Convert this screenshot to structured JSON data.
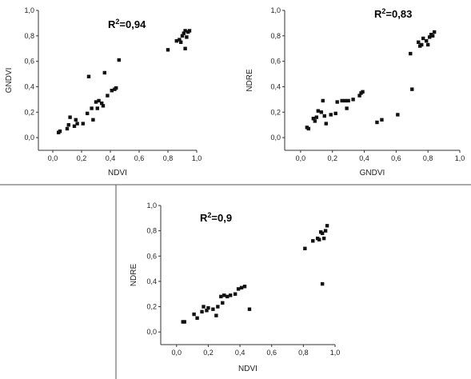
{
  "chart_data": [
    {
      "type": "scatter",
      "xlabel": "NDVI",
      "ylabel": "GNDVI",
      "annotation": {
        "base": "R",
        "sup": "2",
        "value": "=0,94"
      },
      "xlim": [
        -0.1,
        1.0
      ],
      "ylim": [
        -0.1,
        1.0
      ],
      "xticks": [
        "0,0",
        "0,2",
        "0,4",
        "0,6",
        "0,8",
        "1,0"
      ],
      "yticks": [
        "0,0",
        "0,2",
        "0,4",
        "0,6",
        "0,8",
        "1,0"
      ],
      "points": [
        [
          0.04,
          0.04
        ],
        [
          0.05,
          0.05
        ],
        [
          0.1,
          0.07
        ],
        [
          0.11,
          0.1
        ],
        [
          0.12,
          0.16
        ],
        [
          0.15,
          0.09
        ],
        [
          0.16,
          0.14
        ],
        [
          0.17,
          0.11
        ],
        [
          0.21,
          0.11
        ],
        [
          0.24,
          0.19
        ],
        [
          0.25,
          0.48
        ],
        [
          0.27,
          0.23
        ],
        [
          0.28,
          0.14
        ],
        [
          0.3,
          0.28
        ],
        [
          0.31,
          0.23
        ],
        [
          0.32,
          0.29
        ],
        [
          0.34,
          0.27
        ],
        [
          0.35,
          0.25
        ],
        [
          0.36,
          0.51
        ],
        [
          0.38,
          0.33
        ],
        [
          0.41,
          0.37
        ],
        [
          0.43,
          0.38
        ],
        [
          0.44,
          0.39
        ],
        [
          0.46,
          0.61
        ],
        [
          0.8,
          0.69
        ],
        [
          0.86,
          0.76
        ],
        [
          0.88,
          0.77
        ],
        [
          0.89,
          0.75
        ],
        [
          0.9,
          0.8
        ],
        [
          0.91,
          0.82
        ],
        [
          0.92,
          0.7
        ],
        [
          0.92,
          0.84
        ],
        [
          0.93,
          0.79
        ],
        [
          0.94,
          0.83
        ],
        [
          0.95,
          0.84
        ]
      ]
    },
    {
      "type": "scatter",
      "xlabel": "GNDVI",
      "ylabel": "NDRE",
      "annotation": {
        "base": "R",
        "sup": "2",
        "value": "=0,83"
      },
      "xlim": [
        -0.1,
        1.0
      ],
      "ylim": [
        -0.1,
        1.0
      ],
      "xticks": [
        "0,0",
        "0,2",
        "0,4",
        "0,6",
        "0,8",
        "1,0"
      ],
      "yticks": [
        "0,0",
        "0,2",
        "0,4",
        "0,6",
        "0,8",
        "1,0"
      ],
      "points": [
        [
          0.04,
          0.08
        ],
        [
          0.05,
          0.07
        ],
        [
          0.08,
          0.15
        ],
        [
          0.09,
          0.13
        ],
        [
          0.1,
          0.16
        ],
        [
          0.11,
          0.21
        ],
        [
          0.13,
          0.2
        ],
        [
          0.14,
          0.29
        ],
        [
          0.15,
          0.17
        ],
        [
          0.16,
          0.11
        ],
        [
          0.19,
          0.18
        ],
        [
          0.22,
          0.19
        ],
        [
          0.23,
          0.28
        ],
        [
          0.26,
          0.29
        ],
        [
          0.28,
          0.29
        ],
        [
          0.29,
          0.23
        ],
        [
          0.3,
          0.29
        ],
        [
          0.33,
          0.3
        ],
        [
          0.37,
          0.33
        ],
        [
          0.38,
          0.35
        ],
        [
          0.39,
          0.36
        ],
        [
          0.48,
          0.12
        ],
        [
          0.51,
          0.14
        ],
        [
          0.61,
          0.18
        ],
        [
          0.69,
          0.66
        ],
        [
          0.7,
          0.38
        ],
        [
          0.74,
          0.75
        ],
        [
          0.75,
          0.72
        ],
        [
          0.76,
          0.73
        ],
        [
          0.77,
          0.78
        ],
        [
          0.79,
          0.76
        ],
        [
          0.8,
          0.73
        ],
        [
          0.81,
          0.79
        ],
        [
          0.82,
          0.81
        ],
        [
          0.83,
          0.8
        ],
        [
          0.84,
          0.83
        ]
      ]
    },
    {
      "type": "scatter",
      "xlabel": "NDVI",
      "ylabel": "NDRE",
      "annotation": {
        "base": "R",
        "sup": "2",
        "value": "=0,9"
      },
      "xlim": [
        -0.1,
        1.0
      ],
      "ylim": [
        -0.1,
        1.0
      ],
      "xticks": [
        "0,0",
        "0,2",
        "0,4",
        "0,6",
        "0,8",
        "1,0"
      ],
      "yticks": [
        "0,0",
        "0,2",
        "0,4",
        "0,6",
        "0,8",
        "1,0"
      ],
      "points": [
        [
          0.04,
          0.08
        ],
        [
          0.05,
          0.08
        ],
        [
          0.11,
          0.14
        ],
        [
          0.13,
          0.11
        ],
        [
          0.16,
          0.16
        ],
        [
          0.17,
          0.2
        ],
        [
          0.19,
          0.17
        ],
        [
          0.2,
          0.19
        ],
        [
          0.23,
          0.18
        ],
        [
          0.25,
          0.13
        ],
        [
          0.26,
          0.2
        ],
        [
          0.28,
          0.28
        ],
        [
          0.29,
          0.23
        ],
        [
          0.3,
          0.29
        ],
        [
          0.32,
          0.28
        ],
        [
          0.34,
          0.29
        ],
        [
          0.37,
          0.3
        ],
        [
          0.39,
          0.34
        ],
        [
          0.41,
          0.35
        ],
        [
          0.43,
          0.36
        ],
        [
          0.46,
          0.18
        ],
        [
          0.81,
          0.66
        ],
        [
          0.86,
          0.72
        ],
        [
          0.89,
          0.74
        ],
        [
          0.9,
          0.73
        ],
        [
          0.91,
          0.79
        ],
        [
          0.92,
          0.38
        ],
        [
          0.92,
          0.78
        ],
        [
          0.93,
          0.74
        ],
        [
          0.94,
          0.8
        ],
        [
          0.95,
          0.84
        ]
      ]
    }
  ]
}
